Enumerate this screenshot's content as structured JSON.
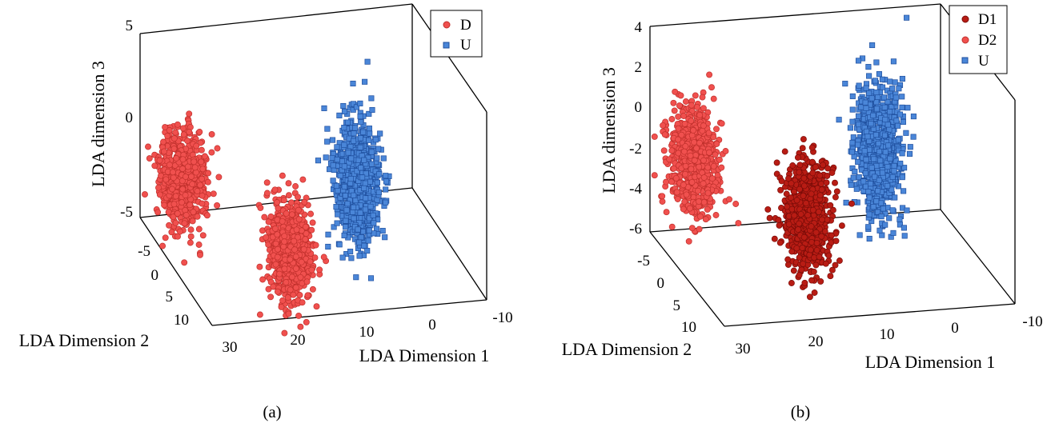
{
  "chart_data": [
    {
      "type": "scatter3d",
      "caption": "(a)",
      "xlabel": "LDA Dimension 1",
      "ylabel": "LDA Dimension 2",
      "zlabel": "LDA dimension 3",
      "x_ticks": [
        "30",
        "20",
        "10",
        "0",
        "-10"
      ],
      "y_ticks": [
        "-5",
        "0",
        "5",
        "10"
      ],
      "z_ticks": [
        "5",
        "0",
        "-5"
      ],
      "xlim": [
        -10,
        30
      ],
      "ylim": [
        -8,
        12
      ],
      "zlim": [
        -5,
        5
      ],
      "grid": false,
      "legend_position": "top-right",
      "series": [
        {
          "name": "D",
          "marker": "circle",
          "color": "#f0504e",
          "edge": "#c0302c",
          "clusters": [
            {
              "center": [
                28,
                0,
                -0.8
              ],
              "spread": [
                1.6,
                1.4,
                1.2
              ],
              "count": 700
            },
            {
              "center": [
                14,
                3,
                -4.2
              ],
              "spread": [
                1.4,
                1.3,
                1.3
              ],
              "count": 700
            }
          ]
        },
        {
          "name": "U",
          "marker": "square",
          "color": "#4a86d8",
          "edge": "#1f4f9e",
          "clusters": [
            {
              "center": [
                3,
                1,
                -1.5
              ],
              "spread": [
                1.4,
                1.3,
                1.6
              ],
              "count": 900
            }
          ]
        }
      ]
    },
    {
      "type": "scatter3d",
      "caption": "(b)",
      "xlabel": "LDA Dimension 1",
      "ylabel": "LDA Dimension 2",
      "zlabel": "LDA dimension 3",
      "x_ticks": [
        "30",
        "20",
        "10",
        "0",
        "-10"
      ],
      "y_ticks": [
        "-5",
        "0",
        "5",
        "10"
      ],
      "z_ticks": [
        "4",
        "2",
        "0",
        "-2",
        "-4",
        "-6"
      ],
      "xlim": [
        -10,
        30
      ],
      "ylim": [
        -8,
        12
      ],
      "zlim": [
        -6,
        4
      ],
      "grid": false,
      "legend_position": "top-right",
      "series": [
        {
          "name": "D1",
          "marker": "circle",
          "color": "#b81c14",
          "edge": "#7a0c08",
          "clusters": [
            {
              "center": [
                14,
                3,
                -3.2
              ],
              "spread": [
                1.4,
                1.3,
                1.3
              ],
              "count": 800
            }
          ]
        },
        {
          "name": "D2",
          "marker": "circle",
          "color": "#f0504e",
          "edge": "#c0302c",
          "clusters": [
            {
              "center": [
                28,
                0,
                -0.8
              ],
              "spread": [
                1.6,
                1.4,
                1.2
              ],
              "count": 700
            }
          ]
        },
        {
          "name": "U",
          "marker": "square",
          "color": "#4a86d8",
          "edge": "#1f4f9e",
          "clusters": [
            {
              "center": [
                3,
                1,
                -0.6
              ],
              "spread": [
                1.4,
                1.3,
                1.6
              ],
              "count": 900
            }
          ]
        }
      ]
    }
  ]
}
